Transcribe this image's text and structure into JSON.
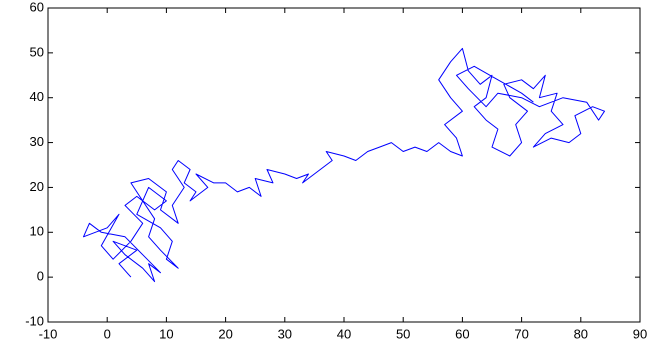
{
  "chart_data": {
    "type": "line",
    "x": [
      4,
      2,
      5,
      1,
      3,
      6,
      8,
      7,
      9,
      6,
      3,
      -1,
      -3,
      -4,
      0,
      2,
      -1,
      1,
      4,
      6,
      3,
      5,
      8,
      10,
      7,
      5,
      9,
      11,
      10,
      12,
      9,
      7,
      8,
      6,
      4,
      7,
      10,
      9,
      12,
      11,
      13,
      11,
      12,
      14,
      13,
      15,
      14,
      17,
      15,
      18,
      20,
      22,
      24,
      26,
      25,
      28,
      27,
      30,
      32,
      34,
      33,
      36,
      38,
      37,
      40,
      42,
      44,
      46,
      48,
      50,
      52,
      54,
      56,
      58,
      60,
      59,
      57,
      60,
      58,
      56,
      58,
      60,
      61,
      63,
      65,
      64,
      62,
      64,
      66,
      65,
      68,
      70,
      69,
      71,
      68,
      67,
      70,
      72,
      74,
      73,
      76,
      75,
      77,
      74,
      72,
      75,
      78,
      80,
      79,
      82,
      84,
      83,
      81,
      77,
      73,
      70,
      66,
      64,
      61,
      59,
      62,
      66,
      70,
      72
    ],
    "values": [
      0,
      3,
      6,
      8,
      5,
      2,
      -1,
      3,
      1,
      5,
      9,
      10,
      12,
      9,
      11,
      14,
      7,
      4,
      8,
      12,
      16,
      18,
      15,
      17,
      20,
      14,
      11,
      8,
      4,
      2,
      6,
      9,
      13,
      17,
      21,
      22,
      19,
      15,
      12,
      16,
      20,
      24,
      26,
      24,
      21,
      19,
      17,
      20,
      23,
      21,
      21,
      19,
      20,
      18,
      22,
      21,
      24,
      23,
      22,
      23,
      21,
      24,
      26,
      28,
      27,
      26,
      28,
      29,
      30,
      28,
      29,
      28,
      30,
      28,
      27,
      31,
      34,
      37,
      40,
      44,
      48,
      51,
      46,
      43,
      45,
      40,
      38,
      35,
      33,
      29,
      27,
      30,
      34,
      37,
      40,
      43,
      44,
      42,
      45,
      40,
      41,
      37,
      34,
      32,
      29,
      31,
      30,
      32,
      36,
      38,
      37,
      35,
      39,
      40,
      38,
      40,
      41,
      38,
      42,
      45,
      47,
      44,
      41,
      39
    ],
    "color": "#0000ff",
    "xlim": [
      -10,
      90
    ],
    "xticks": [
      -10,
      0,
      10,
      20,
      30,
      40,
      50,
      60,
      70,
      80,
      90
    ],
    "ylim": [
      -10,
      60
    ],
    "yticks": [
      -10,
      0,
      10,
      20,
      30,
      40,
      50,
      60
    ],
    "grid": false
  }
}
